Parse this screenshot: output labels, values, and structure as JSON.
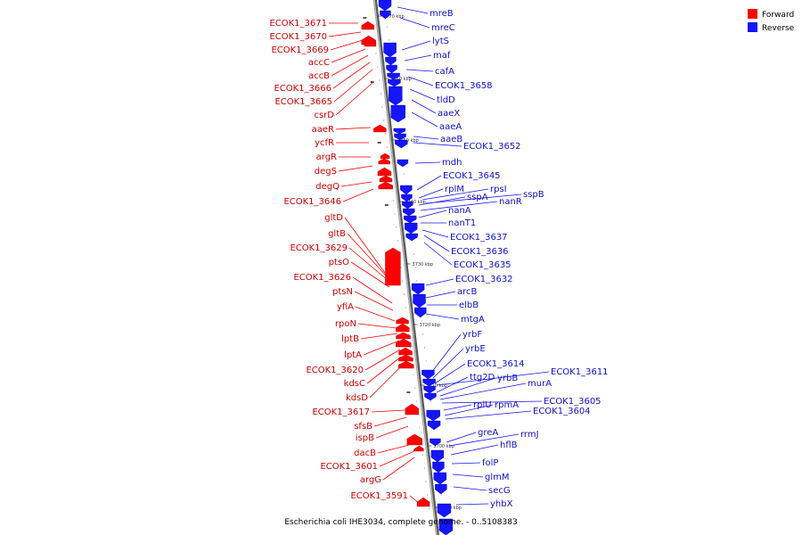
{
  "caption": "Escherichia coli IHE3034, complete genome. - 0..5108383",
  "legend": [
    {
      "label": "Forward",
      "color": "#ff0000"
    },
    {
      "label": "Reverse",
      "color": "#1515ff"
    }
  ],
  "colors": {
    "forward": "#ff0000",
    "reverse": "#1515ff",
    "backbone": "#8a8a8a"
  },
  "ticks": [
    "3770 kbp",
    "3760 kbp",
    "3750 kbp",
    "3740 kbp",
    "3730 kbp",
    "3720 kbp",
    "3710 kbp",
    "3700 kbp",
    "3690 kbp"
  ],
  "forward_labels": [
    "ECOK1_3671",
    "ECOK1_3670",
    "ECOK1_3669",
    "accC",
    "accB",
    "ECOK1_3666",
    "ECOK1_3665",
    "csrD",
    "aaeR",
    "ycfR",
    "argR",
    "degS",
    "degQ",
    "ECOK1_3646",
    "gltD",
    "gltB",
    "ECOK1_3629",
    "ptsO",
    "ECOK1_3626",
    "ptsN",
    "yfiA",
    "rpoN",
    "lptB",
    "lptA",
    "ECOK1_3620",
    "kdsC",
    "kdsD",
    "ECOK1_3617",
    "sfsB",
    "ispB",
    "dacB",
    "ECOK1_3601",
    "argG",
    "ECOK1_3591"
  ],
  "reverse_labels": [
    "mreB",
    "mreC",
    "lytS",
    "maf",
    "cafA",
    "ECOK1_3658",
    "tldD",
    "aaeX",
    "aaeA",
    "aaeB",
    "ECOK1_3652",
    "mdh",
    "ECOK1_3645",
    "rplM",
    "rpsI",
    "sspB",
    "sspA",
    "nanR",
    "nanA",
    "nanT1",
    "ECOK1_3637",
    "ECOK1_3636",
    "ECOK1_3635",
    "ECOK1_3632",
    "arcB",
    "elbB",
    "mtgA",
    "yrbF",
    "yrbE",
    "ECOK1_3614",
    "ECOK1_3611",
    "ttg2D",
    "yrbB",
    "murA",
    "ECOK1_3605",
    "rplU",
    "rpmA",
    "ECOK1_3604",
    "greA",
    "rrmJ",
    "hflB",
    "folP",
    "glmM",
    "secG",
    "yhbX"
  ]
}
